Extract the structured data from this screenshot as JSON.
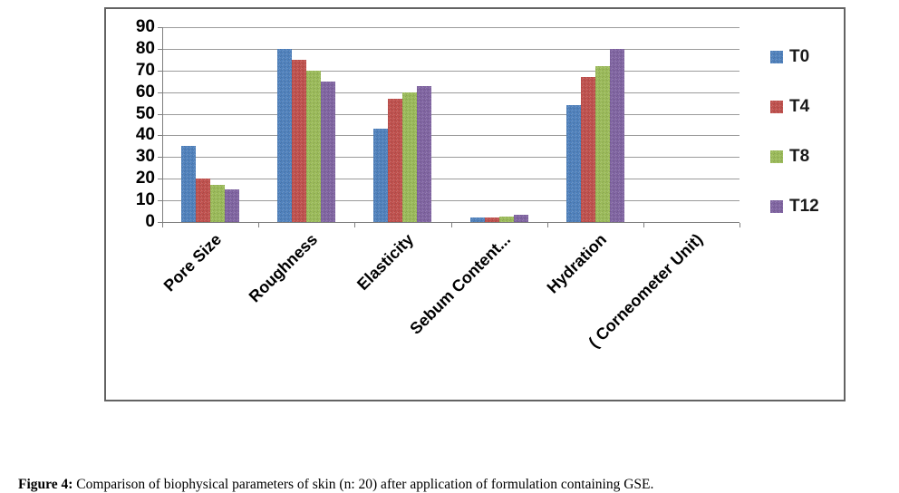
{
  "caption": {
    "label": "Figure 4:",
    "text": " Comparison of biophysical parameters of skin (n: 20) after application of formulation containing GSE."
  },
  "chart_data": {
    "type": "bar",
    "title": "",
    "xlabel": "",
    "ylabel": "",
    "categories": [
      "Pore Size",
      "Roughness",
      "Elasticity",
      "Sebum Content...",
      "Hydration",
      "( Corneometer Unit)"
    ],
    "series": [
      {
        "name": "T0",
        "color": "#4F81BD",
        "values": [
          35,
          80,
          43,
          2,
          54,
          null
        ]
      },
      {
        "name": "T4",
        "color": "#C0504D",
        "values": [
          20,
          75,
          57,
          2,
          67,
          null
        ]
      },
      {
        "name": "T8",
        "color": "#9BBB59",
        "values": [
          17,
          70,
          60,
          2.5,
          72,
          null
        ]
      },
      {
        "name": "T12",
        "color": "#8064A2",
        "values": [
          15,
          65,
          63,
          3.5,
          80,
          null
        ]
      }
    ],
    "ylim": [
      0,
      90
    ],
    "ytick_step": 10,
    "grid": true,
    "legend_position": "right",
    "axis_color": "#7f7f7f",
    "gridline_color": "#8a8a8a"
  }
}
